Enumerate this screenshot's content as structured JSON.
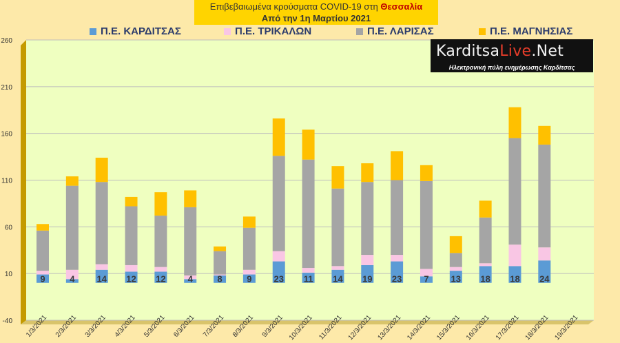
{
  "chart_data": {
    "type": "bar",
    "stacked": true,
    "title": "Επιβεβαιωμένα κρούσματα COVID-19 στη",
    "title_region": "Θεσσαλία",
    "subtitle": "Από την 1η Μαρτίου 2021",
    "categories": [
      "1/3/2021",
      "2/3/2021",
      "3/3/2021",
      "4/3/2021",
      "5/3/2021",
      "6/3/2021",
      "7/3/2021",
      "8/3/2021",
      "9/3/2021",
      "10/3/2021",
      "11/3/2021",
      "12/3/2021",
      "13/3/2021",
      "14/3/2021",
      "15/3/2021",
      "16/3/2021",
      "17/3/2021",
      "18/3/2021",
      "19/3/2021"
    ],
    "series": [
      {
        "name": "Π.Ε. ΚΑΡΔΙΤΣΑΣ",
        "color": "#5b9bd5",
        "values": [
          9,
          4,
          14,
          12,
          12,
          4,
          8,
          9,
          23,
          11,
          14,
          19,
          23,
          7,
          13,
          18,
          18,
          24,
          null
        ],
        "labels": [
          "9",
          "4",
          "14",
          "12",
          "12",
          "4",
          "8",
          "9",
          "23",
          "11",
          "14",
          "19",
          "23",
          "7",
          "13",
          "18",
          "18",
          "24",
          ""
        ]
      },
      {
        "name": "Π.Ε. ΤΡΙΚΑΛΩΝ",
        "color": "#f9c6e4",
        "values": [
          4,
          10,
          6,
          7,
          5,
          4,
          1,
          5,
          11,
          5,
          4,
          11,
          7,
          8,
          4,
          3,
          23,
          14,
          null
        ]
      },
      {
        "name": "Π.Ε. ΛΑΡΙΣΑΣ",
        "color": "#a5a5a5",
        "values": [
          43,
          90,
          88,
          63,
          55,
          73,
          25,
          45,
          102,
          116,
          83,
          78,
          80,
          94,
          15,
          49,
          114,
          110,
          null
        ]
      },
      {
        "name": "Π.Ε. ΜΑΓΝΗΣΙΑΣ",
        "color": "#ffc000",
        "values": [
          7,
          10,
          26,
          10,
          25,
          18,
          5,
          12,
          40,
          32,
          24,
          20,
          31,
          17,
          18,
          18,
          33,
          20,
          null
        ]
      }
    ],
    "yaxis": {
      "min": -40,
      "max": 260,
      "ticks": [
        "260",
        "210",
        "160",
        "110",
        "60",
        "10",
        "-40"
      ]
    },
    "grid": true,
    "legend_position": "top"
  },
  "logo": {
    "brand_a": "Karditsa",
    "brand_b": "Live",
    "brand_c": ".Net",
    "tagline": "Ηλεκτρονική πύλη ενημέρωσης Καρδίτσας"
  },
  "colors": {
    "plot_bg": "#efffc0",
    "frame": "#c49a00",
    "page_bg": "#fde9a9",
    "title_bg": "#ffd400"
  }
}
